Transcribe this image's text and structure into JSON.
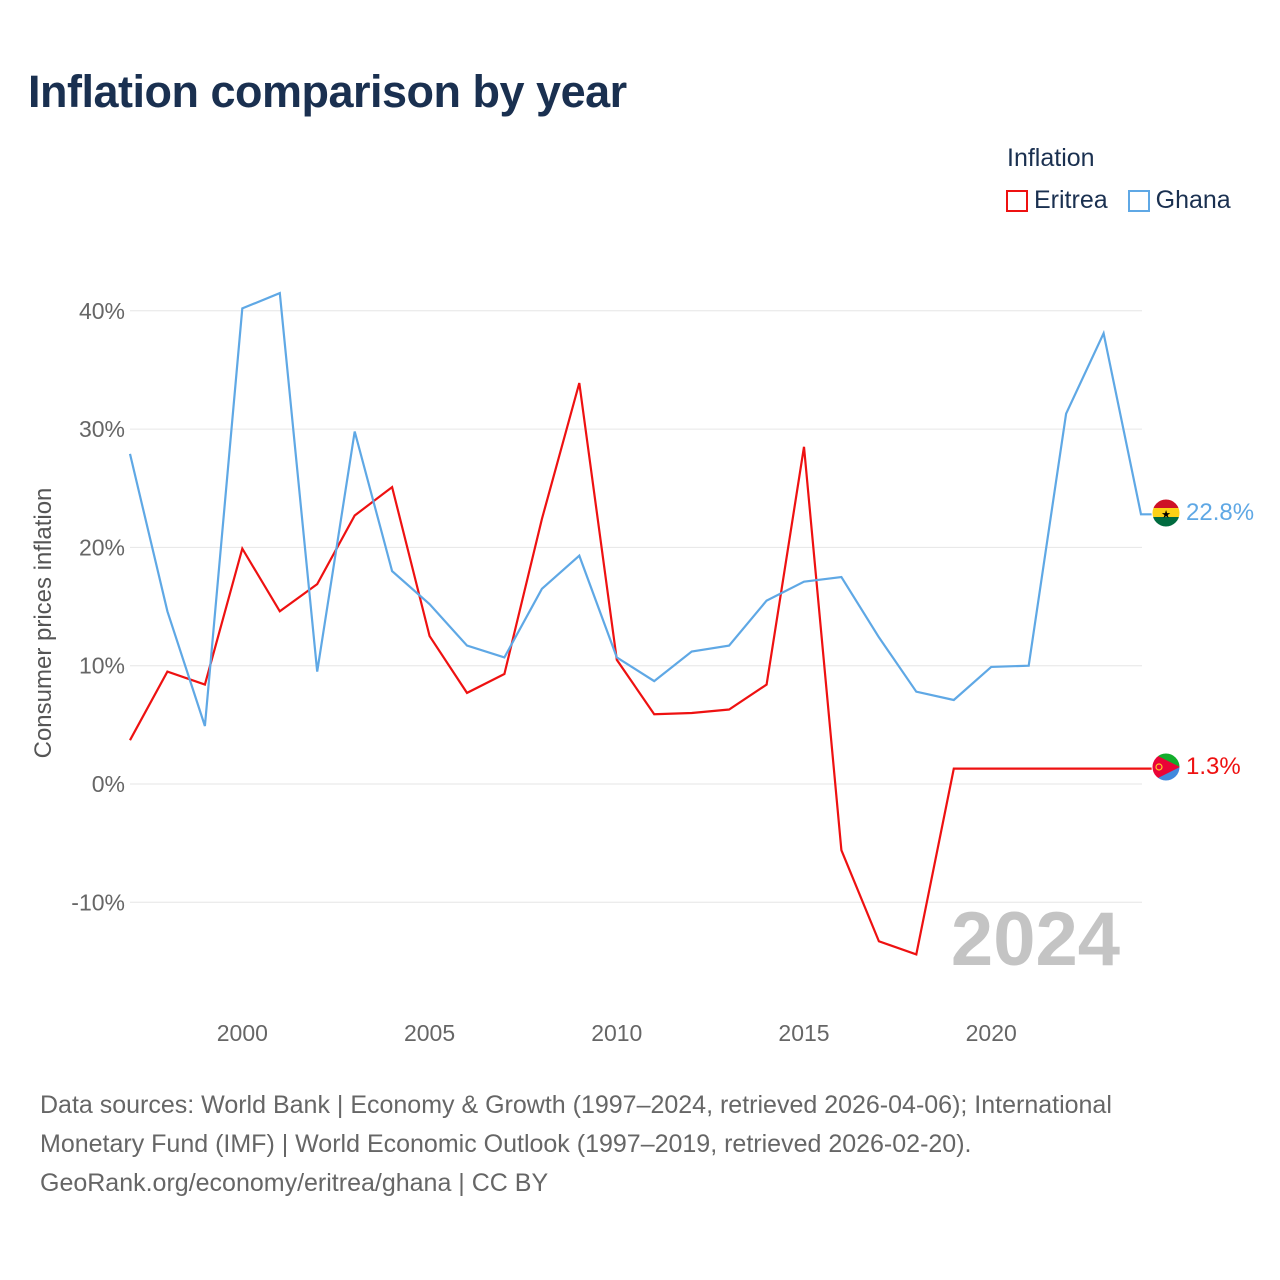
{
  "chart_data": {
    "type": "line",
    "title": "Inflation comparison by year",
    "ylabel": "Consumer prices inflation",
    "xlabel": "",
    "legend_title": "Inflation",
    "legend_position": "top-right",
    "year_watermark": "2024",
    "x": [
      1997,
      1998,
      1999,
      2000,
      2001,
      2002,
      2003,
      2004,
      2005,
      2006,
      2007,
      2008,
      2009,
      2010,
      2011,
      2012,
      2013,
      2014,
      2015,
      2016,
      2017,
      2018,
      2019,
      2020,
      2021,
      2022,
      2023,
      2024
    ],
    "xlim": [
      1997,
      2024
    ],
    "ylim": [
      -17,
      43
    ],
    "x_ticks": [
      {
        "value": 2000,
        "label": "2000"
      },
      {
        "value": 2005,
        "label": "2005"
      },
      {
        "value": 2010,
        "label": "2010"
      },
      {
        "value": 2015,
        "label": "2015"
      },
      {
        "value": 2020,
        "label": "2020"
      }
    ],
    "y_ticks": [
      {
        "value": 40,
        "label": "40%"
      },
      {
        "value": 30,
        "label": "30%"
      },
      {
        "value": 20,
        "label": "20%"
      },
      {
        "value": 10,
        "label": "10%"
      },
      {
        "value": 0,
        "label": "0%"
      },
      {
        "value": -10,
        "label": "-10%"
      }
    ],
    "grid": true,
    "series": [
      {
        "name": "Eritrea",
        "color": "#ee1111",
        "end_label": "1.3%",
        "flag": "eritrea-flag",
        "values": [
          3.7,
          9.5,
          8.4,
          19.9,
          14.6,
          16.9,
          22.7,
          25.1,
          12.5,
          7.7,
          9.3,
          22.4,
          33.9,
          10.5,
          5.9,
          6.0,
          6.3,
          8.4,
          28.5,
          -5.6,
          -13.3,
          -14.4,
          1.3,
          1.3,
          1.3,
          1.3,
          1.3,
          1.3
        ]
      },
      {
        "name": "Ghana",
        "color": "#5fa8e5",
        "end_label": "22.8%",
        "flag": "ghana-flag",
        "values": [
          27.9,
          14.6,
          4.9,
          40.2,
          41.5,
          9.5,
          29.8,
          18.0,
          15.2,
          11.7,
          10.7,
          16.5,
          19.3,
          10.7,
          8.7,
          11.2,
          11.7,
          15.5,
          17.1,
          17.5,
          12.4,
          7.8,
          7.1,
          9.9,
          10.0,
          31.3,
          38.1,
          22.8
        ]
      }
    ]
  },
  "footer": {
    "line1": "Data sources: World Bank | Economy & Growth (1997–2024, retrieved 2026-04-06); International",
    "line2": "Monetary Fund (IMF) | World Economic Outlook (1997–2019, retrieved 2026-02-20).",
    "line3": "GeoRank.org/economy/eritrea/ghana | CC BY"
  }
}
